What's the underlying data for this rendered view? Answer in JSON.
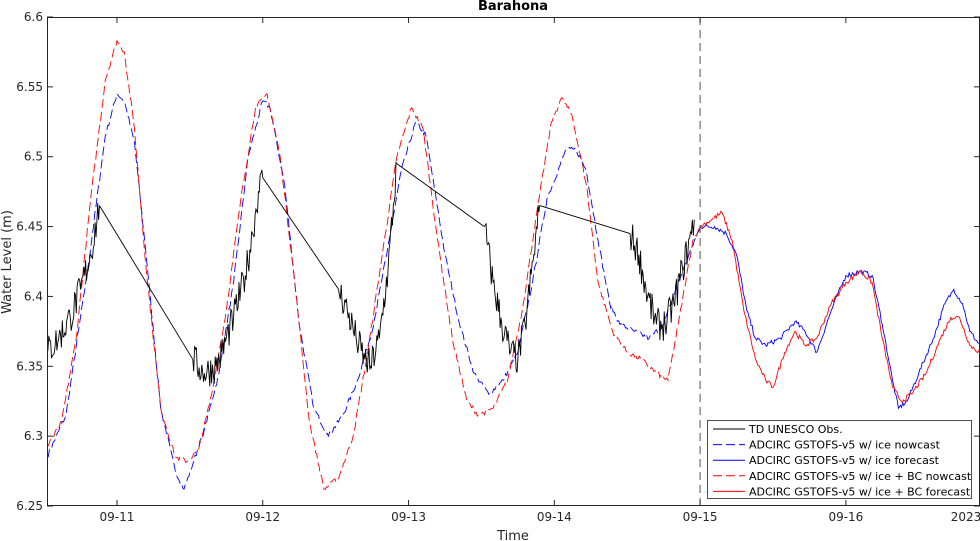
{
  "chart_data": {
    "type": "line",
    "title": "Barahona",
    "xlabel": "Time",
    "ylabel": "Water Level (m)",
    "year_label": "2023",
    "xlim": [
      10.52,
      16.92
    ],
    "ylim": [
      6.25,
      6.6
    ],
    "x_ticks": [
      11,
      12,
      13,
      14,
      15,
      16
    ],
    "x_tick_labels": [
      "09-11",
      "09-12",
      "09-13",
      "09-14",
      "09-15",
      "09-16"
    ],
    "y_ticks": [
      6.25,
      6.3,
      6.35,
      6.4,
      6.45,
      6.5,
      6.55,
      6.6
    ],
    "y_tick_labels": [
      "6.25",
      "6.3",
      "6.35",
      "6.4",
      "6.45",
      "6.5",
      "6.55",
      "6.6"
    ],
    "nowcast_divider_x": 15.0,
    "legend_position": "bottom-right",
    "series": [
      {
        "name": "TD UNESCO Obs.",
        "color": "#000000",
        "dash": "solid",
        "noise": 0.012,
        "segments": [
          [
            [
              10.52,
              6.36
            ],
            [
              10.6,
              6.37
            ],
            [
              10.68,
              6.385
            ],
            [
              10.75,
              6.405
            ],
            [
              10.82,
              6.43
            ],
            [
              10.88,
              6.465
            ]
          ],
          [
            [
              10.88,
              6.465
            ],
            [
              11.52,
              6.355
            ]
          ],
          [
            [
              11.52,
              6.355
            ],
            [
              11.6,
              6.345
            ],
            [
              11.68,
              6.35
            ],
            [
              11.72,
              6.36
            ]
          ],
          [
            [
              11.72,
              6.36
            ],
            [
              11.8,
              6.385
            ],
            [
              11.88,
              6.415
            ],
            [
              11.93,
              6.445
            ],
            [
              11.97,
              6.475
            ],
            [
              12.0,
              6.485
            ]
          ],
          [
            [
              12.0,
              6.485
            ],
            [
              12.52,
              6.405
            ]
          ],
          [
            [
              12.52,
              6.405
            ],
            [
              12.58,
              6.39
            ],
            [
              12.64,
              6.37
            ],
            [
              12.7,
              6.355
            ],
            [
              12.74,
              6.35
            ],
            [
              12.8,
              6.37
            ],
            [
              12.86,
              6.42
            ],
            [
              12.92,
              6.495
            ]
          ],
          [
            [
              12.92,
              6.495
            ],
            [
              13.52,
              6.45
            ]
          ],
          [
            [
              13.52,
              6.45
            ],
            [
              13.58,
              6.41
            ],
            [
              13.64,
              6.38
            ],
            [
              13.7,
              6.36
            ],
            [
              13.75,
              6.355
            ],
            [
              13.8,
              6.38
            ],
            [
              13.86,
              6.43
            ],
            [
              13.9,
              6.465
            ]
          ],
          [
            [
              13.9,
              6.465
            ],
            [
              14.52,
              6.445
            ]
          ],
          [
            [
              14.52,
              6.445
            ],
            [
              14.58,
              6.43
            ],
            [
              14.64,
              6.4
            ],
            [
              14.7,
              6.38
            ],
            [
              14.76,
              6.38
            ],
            [
              14.82,
              6.395
            ],
            [
              14.88,
              6.42
            ],
            [
              14.94,
              6.445
            ],
            [
              14.96,
              6.455
            ]
          ]
        ]
      },
      {
        "name": "ADCIRC GSTOFS-v5 w/ ice nowcast",
        "color": "#0000ff",
        "dash": "dashed",
        "noise": 0.0018,
        "points": [
          [
            10.52,
            6.285
          ],
          [
            10.65,
            6.315
          ],
          [
            10.8,
            6.42
          ],
          [
            10.92,
            6.515
          ],
          [
            11.0,
            6.545
          ],
          [
            11.05,
            6.54
          ],
          [
            11.12,
            6.51
          ],
          [
            11.2,
            6.43
          ],
          [
            11.3,
            6.32
          ],
          [
            11.4,
            6.275
          ],
          [
            11.46,
            6.262
          ],
          [
            11.52,
            6.28
          ],
          [
            11.6,
            6.305
          ],
          [
            11.7,
            6.345
          ],
          [
            11.8,
            6.41
          ],
          [
            11.9,
            6.5
          ],
          [
            12.0,
            6.54
          ],
          [
            12.05,
            6.535
          ],
          [
            12.15,
            6.48
          ],
          [
            12.25,
            6.38
          ],
          [
            12.35,
            6.32
          ],
          [
            12.45,
            6.3
          ],
          [
            12.55,
            6.315
          ],
          [
            12.65,
            6.34
          ],
          [
            12.75,
            6.375
          ],
          [
            12.85,
            6.43
          ],
          [
            12.95,
            6.49
          ],
          [
            13.05,
            6.525
          ],
          [
            13.12,
            6.515
          ],
          [
            13.25,
            6.43
          ],
          [
            13.35,
            6.38
          ],
          [
            13.45,
            6.345
          ],
          [
            13.55,
            6.33
          ],
          [
            13.65,
            6.34
          ],
          [
            13.75,
            6.36
          ],
          [
            13.85,
            6.41
          ],
          [
            13.95,
            6.47
          ],
          [
            14.08,
            6.505
          ],
          [
            14.15,
            6.505
          ],
          [
            14.22,
            6.49
          ],
          [
            14.3,
            6.44
          ],
          [
            14.38,
            6.395
          ],
          [
            14.45,
            6.38
          ],
          [
            14.55,
            6.375
          ],
          [
            14.65,
            6.37
          ],
          [
            14.75,
            6.38
          ],
          [
            14.85,
            6.41
          ],
          [
            15.0,
            6.45
          ]
        ]
      },
      {
        "name": "ADCIRC GSTOFS-v5 w/ ice forecast",
        "color": "#0000ff",
        "dash": "solid",
        "noise": 0.0018,
        "points": [
          [
            15.0,
            6.45
          ],
          [
            15.1,
            6.45
          ],
          [
            15.18,
            6.445
          ],
          [
            15.25,
            6.43
          ],
          [
            15.32,
            6.39
          ],
          [
            15.38,
            6.37
          ],
          [
            15.45,
            6.365
          ],
          [
            15.55,
            6.37
          ],
          [
            15.65,
            6.382
          ],
          [
            15.72,
            6.375
          ],
          [
            15.8,
            6.36
          ],
          [
            15.9,
            6.39
          ],
          [
            16.0,
            6.415
          ],
          [
            16.1,
            6.418
          ],
          [
            16.18,
            6.415
          ],
          [
            16.25,
            6.38
          ],
          [
            16.32,
            6.34
          ],
          [
            16.36,
            6.32
          ],
          [
            16.42,
            6.325
          ],
          [
            16.5,
            6.345
          ],
          [
            16.6,
            6.37
          ],
          [
            16.68,
            6.395
          ],
          [
            16.74,
            6.405
          ],
          [
            16.8,
            6.395
          ],
          [
            16.85,
            6.375
          ],
          [
            16.92,
            6.365
          ]
        ]
      },
      {
        "name": "ADCIRC GSTOFS-v5 w/ ice + BC nowcast",
        "color": "#ff0000",
        "dash": "dashed",
        "noise": 0.0018,
        "points": [
          [
            10.52,
            6.292
          ],
          [
            10.62,
            6.31
          ],
          [
            10.72,
            6.37
          ],
          [
            10.82,
            6.47
          ],
          [
            10.92,
            6.555
          ],
          [
            11.0,
            6.583
          ],
          [
            11.05,
            6.575
          ],
          [
            11.12,
            6.52
          ],
          [
            11.2,
            6.42
          ],
          [
            11.3,
            6.32
          ],
          [
            11.4,
            6.285
          ],
          [
            11.48,
            6.282
          ],
          [
            11.56,
            6.29
          ],
          [
            11.65,
            6.33
          ],
          [
            11.75,
            6.39
          ],
          [
            11.85,
            6.47
          ],
          [
            11.95,
            6.535
          ],
          [
            12.03,
            6.545
          ],
          [
            12.12,
            6.5
          ],
          [
            12.22,
            6.41
          ],
          [
            12.32,
            6.31
          ],
          [
            12.42,
            6.262
          ],
          [
            12.52,
            6.27
          ],
          [
            12.62,
            6.3
          ],
          [
            12.72,
            6.36
          ],
          [
            12.82,
            6.43
          ],
          [
            12.92,
            6.5
          ],
          [
            13.02,
            6.535
          ],
          [
            13.1,
            6.52
          ],
          [
            13.2,
            6.44
          ],
          [
            13.3,
            6.37
          ],
          [
            13.4,
            6.325
          ],
          [
            13.48,
            6.315
          ],
          [
            13.58,
            6.32
          ],
          [
            13.68,
            6.34
          ],
          [
            13.78,
            6.39
          ],
          [
            13.88,
            6.46
          ],
          [
            13.98,
            6.525
          ],
          [
            14.05,
            6.542
          ],
          [
            14.12,
            6.53
          ],
          [
            14.22,
            6.48
          ],
          [
            14.3,
            6.41
          ],
          [
            14.4,
            6.375
          ],
          [
            14.5,
            6.36
          ],
          [
            14.6,
            6.355
          ],
          [
            14.7,
            6.345
          ],
          [
            14.78,
            6.34
          ],
          [
            14.85,
            6.38
          ],
          [
            14.95,
            6.44
          ],
          [
            15.0,
            6.45
          ]
        ]
      },
      {
        "name": "ADCIRC GSTOFS-v5 w/ ice + BC forecast",
        "color": "#ff0000",
        "dash": "solid",
        "noise": 0.0018,
        "points": [
          [
            15.0,
            6.45
          ],
          [
            15.08,
            6.455
          ],
          [
            15.15,
            6.46
          ],
          [
            15.22,
            6.44
          ],
          [
            15.3,
            6.39
          ],
          [
            15.38,
            6.355
          ],
          [
            15.45,
            6.34
          ],
          [
            15.5,
            6.335
          ],
          [
            15.58,
            6.36
          ],
          [
            15.65,
            6.375
          ],
          [
            15.72,
            6.365
          ],
          [
            15.8,
            6.37
          ],
          [
            15.9,
            6.395
          ],
          [
            16.0,
            6.41
          ],
          [
            16.1,
            6.418
          ],
          [
            16.18,
            6.41
          ],
          [
            16.25,
            6.37
          ],
          [
            16.32,
            6.335
          ],
          [
            16.38,
            6.325
          ],
          [
            16.45,
            6.33
          ],
          [
            16.55,
            6.345
          ],
          [
            16.65,
            6.37
          ],
          [
            16.72,
            6.385
          ],
          [
            16.78,
            6.385
          ],
          [
            16.85,
            6.365
          ],
          [
            16.92,
            6.36
          ]
        ]
      }
    ]
  }
}
